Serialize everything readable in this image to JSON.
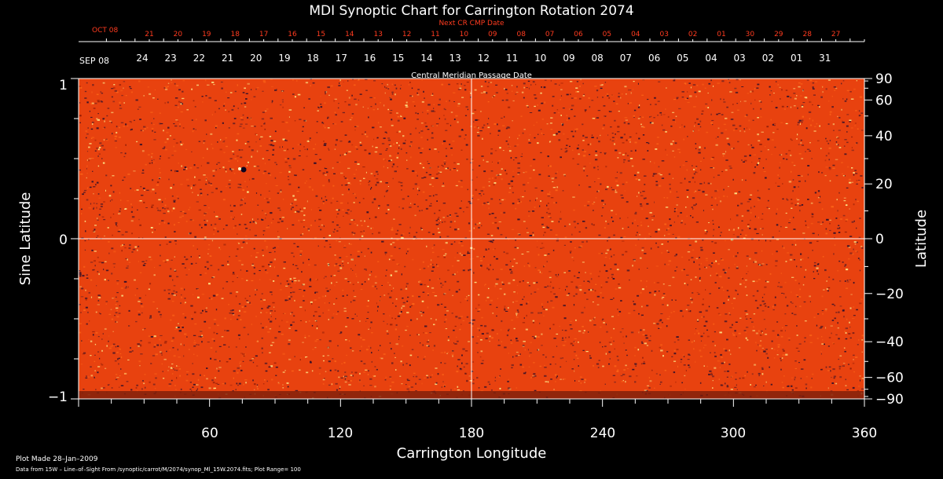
{
  "chart_data": {
    "type": "heatmap",
    "title": "MDI Synoptic Chart for Carrington Rotation 2074",
    "xlabel": "Carrington Longitude",
    "ylabel_left": "Sine Latitude",
    "ylabel_right": "Latitude",
    "xlim": [
      0,
      360
    ],
    "ylim": [
      -1,
      1
    ],
    "x_ticks": [
      "60",
      "120",
      "180",
      "240",
      "300",
      "360"
    ],
    "y_left_ticks": [
      "1",
      "0",
      "−1"
    ],
    "y_right_ticks": [
      "90",
      "60",
      "40",
      "20",
      "0",
      "−20",
      "−40",
      "−60",
      "−90"
    ],
    "top_axis_title": "Next CR CMP Date",
    "top_axis_start_label": "OCT 08",
    "top_axis_labels": [
      "21",
      "20",
      "19",
      "18",
      "17",
      "16",
      "15",
      "14",
      "13",
      "12",
      "11",
      "10",
      "09",
      "08",
      "07",
      "06",
      "05",
      "04",
      "03",
      "02",
      "01",
      "30",
      "29",
      "28",
      "27"
    ],
    "bottom_date_axis_title": "Central Meridian Passage Date",
    "bottom_date_axis_start_label": "SEP 08",
    "bottom_date_axis_labels": [
      "24",
      "23",
      "22",
      "21",
      "20",
      "19",
      "18",
      "17",
      "16",
      "15",
      "14",
      "13",
      "12",
      "11",
      "10",
      "09",
      "08",
      "07",
      "06",
      "05",
      "04",
      "03",
      "02",
      "01",
      "31"
    ],
    "colormap": [
      "#1a0a2e",
      "#ff3300",
      "#ffff99"
    ],
    "grid_lines": "crosshair at longitude 180 and latitude 0"
  },
  "footer": {
    "plot_made": "Plot Made 28–Jan–2009",
    "data_source": "Data from 15W – Line–of–Sight From /synoptic/carrot/M/2074/synop_Ml_15W.2074.fits; Plot Range= 100"
  }
}
